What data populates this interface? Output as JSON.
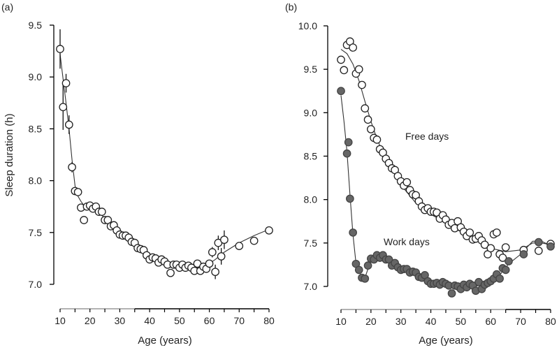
{
  "chart_data": [
    {
      "panel": "(a)",
      "type": "scatter",
      "title": "",
      "xlabel": "Age (years)",
      "ylabel": "Sleep duration (h)",
      "xlim": [
        10,
        80
      ],
      "ylim": [
        7.0,
        9.5
      ],
      "xticks": [
        10,
        20,
        30,
        40,
        50,
        60,
        70,
        80
      ],
      "yticks": [
        "7.0",
        "7.5",
        "8.0",
        "8.5",
        "9.0",
        "9.5"
      ],
      "grid": false,
      "legend": "none",
      "series": [
        {
          "name": "Sleep duration",
          "marker": "open-circle",
          "points": [
            {
              "x": 10,
              "y": 9.27,
              "err": 0.19
            },
            {
              "x": 11,
              "y": 8.71,
              "err": 0.22
            },
            {
              "x": 12,
              "y": 8.94,
              "err": 0.09
            },
            {
              "x": 13,
              "y": 8.54,
              "err": 0.09
            },
            {
              "x": 14,
              "y": 8.13,
              "err": 0.05
            },
            {
              "x": 15,
              "y": 7.9
            },
            {
              "x": 16,
              "y": 7.89
            },
            {
              "x": 17,
              "y": 7.74
            },
            {
              "x": 18,
              "y": 7.62
            },
            {
              "x": 19,
              "y": 7.75
            },
            {
              "x": 20,
              "y": 7.76
            },
            {
              "x": 21,
              "y": 7.73
            },
            {
              "x": 22,
              "y": 7.75
            },
            {
              "x": 23,
              "y": 7.7
            },
            {
              "x": 24,
              "y": 7.7
            },
            {
              "x": 25,
              "y": 7.62
            },
            {
              "x": 26,
              "y": 7.62
            },
            {
              "x": 27,
              "y": 7.56
            },
            {
              "x": 28,
              "y": 7.57
            },
            {
              "x": 29,
              "y": 7.52
            },
            {
              "x": 30,
              "y": 7.48
            },
            {
              "x": 31,
              "y": 7.47
            },
            {
              "x": 32,
              "y": 7.47
            },
            {
              "x": 33,
              "y": 7.45
            },
            {
              "x": 34,
              "y": 7.41
            },
            {
              "x": 35,
              "y": 7.4
            },
            {
              "x": 36,
              "y": 7.35
            },
            {
              "x": 37,
              "y": 7.34
            },
            {
              "x": 38,
              "y": 7.33
            },
            {
              "x": 39,
              "y": 7.28
            },
            {
              "x": 40,
              "y": 7.24
            },
            {
              "x": 41,
              "y": 7.26
            },
            {
              "x": 42,
              "y": 7.25
            },
            {
              "x": 43,
              "y": 7.21
            },
            {
              "x": 44,
              "y": 7.24
            },
            {
              "x": 45,
              "y": 7.22
            },
            {
              "x": 46,
              "y": 7.19
            },
            {
              "x": 47,
              "y": 7.11
            },
            {
              "x": 48,
              "y": 7.19
            },
            {
              "x": 49,
              "y": 7.19
            },
            {
              "x": 50,
              "y": 7.16
            },
            {
              "x": 51,
              "y": 7.19
            },
            {
              "x": 52,
              "y": 7.16
            },
            {
              "x": 53,
              "y": 7.18
            },
            {
              "x": 54,
              "y": 7.16
            },
            {
              "x": 55,
              "y": 7.13
            },
            {
              "x": 56,
              "y": 7.2
            },
            {
              "x": 57,
              "y": 7.13
            },
            {
              "x": 58,
              "y": 7.17
            },
            {
              "x": 59,
              "y": 7.15
            },
            {
              "x": 60,
              "y": 7.2
            },
            {
              "x": 61,
              "y": 7.31,
              "err": 0.05
            },
            {
              "x": 62,
              "y": 7.12,
              "err": 0.07
            },
            {
              "x": 63,
              "y": 7.4,
              "err": 0.07
            },
            {
              "x": 64,
              "y": 7.27,
              "err": 0.08
            },
            {
              "x": 65,
              "y": 7.43,
              "err": 0.09
            },
            {
              "x": 70,
              "y": 7.37
            },
            {
              "x": 75,
              "y": 7.42
            },
            {
              "x": 80,
              "y": 7.52
            }
          ]
        },
        {
          "name": "Fit",
          "type": "line",
          "x": [
            10,
            11,
            12,
            13,
            14,
            15,
            16,
            17,
            18,
            20,
            22,
            25,
            30,
            35,
            40,
            45,
            50,
            55,
            58,
            60,
            62,
            65,
            70,
            75,
            80
          ],
          "y": [
            9.22,
            8.98,
            8.75,
            8.5,
            8.2,
            7.95,
            7.85,
            7.8,
            7.76,
            7.74,
            7.71,
            7.64,
            7.49,
            7.37,
            7.27,
            7.21,
            7.17,
            7.15,
            7.17,
            7.2,
            7.24,
            7.31,
            7.4,
            7.47,
            7.53
          ]
        }
      ]
    },
    {
      "panel": "(b)",
      "type": "scatter",
      "title": "",
      "xlabel": "Age (years)",
      "ylabel": "",
      "xlim": [
        10,
        80
      ],
      "ylim": [
        7.0,
        10.0
      ],
      "xticks": [
        10,
        20,
        30,
        40,
        50,
        60,
        70,
        80
      ],
      "yticks": [
        "7.0",
        "7.5",
        "8.0",
        "8.5",
        "9.0",
        "9.5",
        "10.0"
      ],
      "grid": false,
      "legend": "none",
      "annotations": [
        {
          "text": "Free days",
          "x": 35,
          "y": 8.75
        },
        {
          "text": "Work days",
          "x": 32,
          "y": 7.51
        }
      ],
      "series": [
        {
          "name": "Free days",
          "marker": "open-circle",
          "points": [
            {
              "x": 10,
              "y": 9.61
            },
            {
              "x": 11,
              "y": 9.49
            },
            {
              "x": 12,
              "y": 9.78
            },
            {
              "x": 13,
              "y": 9.82
            },
            {
              "x": 14,
              "y": 9.75
            },
            {
              "x": 15,
              "y": 9.45
            },
            {
              "x": 16,
              "y": 9.5
            },
            {
              "x": 17,
              "y": 9.32
            },
            {
              "x": 18,
              "y": 9.05
            },
            {
              "x": 19,
              "y": 8.92
            },
            {
              "x": 20,
              "y": 8.81
            },
            {
              "x": 21,
              "y": 8.71
            },
            {
              "x": 22,
              "y": 8.69
            },
            {
              "x": 23,
              "y": 8.58
            },
            {
              "x": 24,
              "y": 8.54
            },
            {
              "x": 25,
              "y": 8.47
            },
            {
              "x": 26,
              "y": 8.42
            },
            {
              "x": 27,
              "y": 8.36
            },
            {
              "x": 28,
              "y": 8.34
            },
            {
              "x": 29,
              "y": 8.27
            },
            {
              "x": 30,
              "y": 8.21
            },
            {
              "x": 31,
              "y": 8.16
            },
            {
              "x": 32,
              "y": 8.2
            },
            {
              "x": 33,
              "y": 8.11
            },
            {
              "x": 34,
              "y": 8.06
            },
            {
              "x": 35,
              "y": 8.05
            },
            {
              "x": 36,
              "y": 7.98
            },
            {
              "x": 37,
              "y": 7.92
            },
            {
              "x": 38,
              "y": 7.88
            },
            {
              "x": 39,
              "y": 7.9
            },
            {
              "x": 40,
              "y": 7.86
            },
            {
              "x": 41,
              "y": 7.86
            },
            {
              "x": 42,
              "y": 7.85
            },
            {
              "x": 43,
              "y": 7.78
            },
            {
              "x": 44,
              "y": 7.82
            },
            {
              "x": 45,
              "y": 7.77
            },
            {
              "x": 46,
              "y": 7.71
            },
            {
              "x": 47,
              "y": 7.73
            },
            {
              "x": 48,
              "y": 7.67
            },
            {
              "x": 49,
              "y": 7.75
            },
            {
              "x": 50,
              "y": 7.68
            },
            {
              "x": 51,
              "y": 7.63
            },
            {
              "x": 52,
              "y": 7.58
            },
            {
              "x": 53,
              "y": 7.62
            },
            {
              "x": 54,
              "y": 7.54
            },
            {
              "x": 55,
              "y": 7.55
            },
            {
              "x": 56,
              "y": 7.58
            },
            {
              "x": 57,
              "y": 7.53
            },
            {
              "x": 58,
              "y": 7.48
            },
            {
              "x": 59,
              "y": 7.37
            },
            {
              "x": 60,
              "y": 7.44
            },
            {
              "x": 61,
              "y": 7.6
            },
            {
              "x": 62,
              "y": 7.62
            },
            {
              "x": 63,
              "y": 7.37
            },
            {
              "x": 64,
              "y": 7.33
            },
            {
              "x": 65,
              "y": 7.45
            },
            {
              "x": 71,
              "y": 7.42
            },
            {
              "x": 76,
              "y": 7.41
            },
            {
              "x": 80,
              "y": 7.49
            }
          ]
        },
        {
          "name": "Free days fit",
          "type": "line",
          "x": [
            10,
            12,
            14,
            16,
            18,
            20,
            22,
            25,
            30,
            35,
            40,
            45,
            50,
            55,
            60,
            65,
            70,
            74,
            77,
            80
          ],
          "y": [
            9.73,
            9.68,
            9.56,
            9.37,
            9.13,
            8.9,
            8.7,
            8.46,
            8.17,
            7.96,
            7.83,
            7.73,
            7.63,
            7.53,
            7.44,
            7.4,
            7.42,
            7.5,
            7.5,
            7.48
          ]
        },
        {
          "name": "Work days",
          "marker": "filled-circle",
          "points": [
            {
              "x": 10,
              "y": 9.25
            },
            {
              "x": 12,
              "y": 8.53
            },
            {
              "x": 12.5,
              "y": 8.66
            },
            {
              "x": 13,
              "y": 8.01
            },
            {
              "x": 14,
              "y": 7.62
            },
            {
              "x": 15,
              "y": 7.26
            },
            {
              "x": 16,
              "y": 7.19
            },
            {
              "x": 17,
              "y": 7.1
            },
            {
              "x": 18,
              "y": 7.09
            },
            {
              "x": 19,
              "y": 7.24
            },
            {
              "x": 20,
              "y": 7.32
            },
            {
              "x": 21,
              "y": 7.31
            },
            {
              "x": 22,
              "y": 7.36
            },
            {
              "x": 23,
              "y": 7.33
            },
            {
              "x": 24,
              "y": 7.36
            },
            {
              "x": 25,
              "y": 7.31
            },
            {
              "x": 26,
              "y": 7.31
            },
            {
              "x": 27,
              "y": 7.24
            },
            {
              "x": 28,
              "y": 7.27
            },
            {
              "x": 29,
              "y": 7.22
            },
            {
              "x": 30,
              "y": 7.19
            },
            {
              "x": 31,
              "y": 7.2
            },
            {
              "x": 32,
              "y": 7.2
            },
            {
              "x": 33,
              "y": 7.16
            },
            {
              "x": 34,
              "y": 7.17
            },
            {
              "x": 35,
              "y": 7.16
            },
            {
              "x": 36,
              "y": 7.11
            },
            {
              "x": 37,
              "y": 7.1
            },
            {
              "x": 38,
              "y": 7.13
            },
            {
              "x": 39,
              "y": 7.06
            },
            {
              "x": 40,
              "y": 7.03
            },
            {
              "x": 41,
              "y": 7.03
            },
            {
              "x": 42,
              "y": 7.04
            },
            {
              "x": 43,
              "y": 7.02
            },
            {
              "x": 44,
              "y": 7.05
            },
            {
              "x": 45,
              "y": 7.03
            },
            {
              "x": 46,
              "y": 7.01
            },
            {
              "x": 47,
              "y": 6.92
            },
            {
              "x": 48,
              "y": 7.01
            },
            {
              "x": 49,
              "y": 7.0
            },
            {
              "x": 50,
              "y": 6.97
            },
            {
              "x": 51,
              "y": 7.02
            },
            {
              "x": 52,
              "y": 6.99
            },
            {
              "x": 53,
              "y": 7.03
            },
            {
              "x": 54,
              "y": 7.01
            },
            {
              "x": 55,
              "y": 6.95
            },
            {
              "x": 56,
              "y": 7.05
            },
            {
              "x": 57,
              "y": 6.97
            },
            {
              "x": 58,
              "y": 7.02
            },
            {
              "x": 59,
              "y": 7.04
            },
            {
              "x": 60,
              "y": 7.06
            },
            {
              "x": 61,
              "y": 7.09
            },
            {
              "x": 62,
              "y": 7.14
            },
            {
              "x": 63,
              "y": 7.09
            },
            {
              "x": 64,
              "y": 7.21
            },
            {
              "x": 65,
              "y": 7.19
            },
            {
              "x": 66,
              "y": 7.29
            },
            {
              "x": 71,
              "y": 7.37
            },
            {
              "x": 76,
              "y": 7.51
            },
            {
              "x": 80,
              "y": 7.46
            }
          ]
        },
        {
          "name": "Work days fit",
          "type": "line",
          "x": [
            10,
            11,
            12,
            13,
            14,
            15,
            16,
            17,
            18,
            19,
            20,
            22,
            24,
            27,
            30,
            35,
            40,
            45,
            50,
            55,
            60,
            63,
            66,
            70,
            74,
            77,
            80
          ],
          "y": [
            9.2,
            8.9,
            8.55,
            8.05,
            7.6,
            7.27,
            7.17,
            7.12,
            7.1,
            7.2,
            7.29,
            7.34,
            7.35,
            7.29,
            7.21,
            7.13,
            7.05,
            7.02,
            7.0,
            7.0,
            7.05,
            7.13,
            7.26,
            7.37,
            7.52,
            7.52,
            7.47
          ]
        }
      ]
    }
  ],
  "colors": {
    "open_marker_fill": "#ffffff",
    "open_marker_stroke": "#222222",
    "filled_marker_fill": "#666666",
    "filled_marker_stroke": "#444444",
    "axis": "#000000",
    "axis_light": "#999999"
  }
}
